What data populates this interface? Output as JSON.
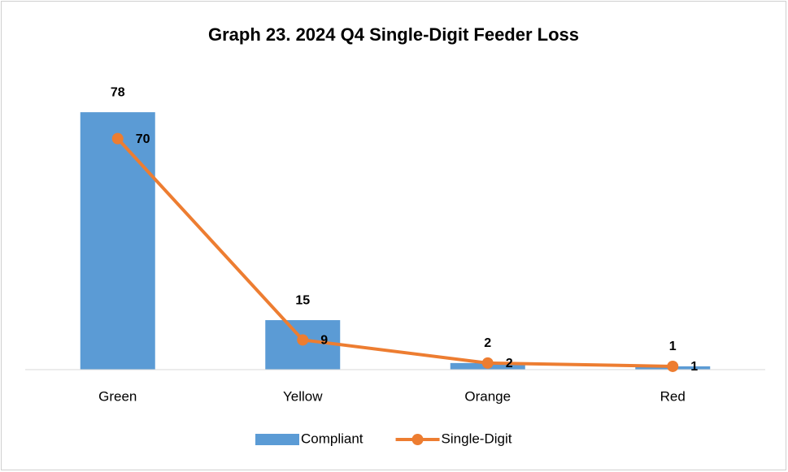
{
  "chart_data": {
    "type": "bar-line",
    "title": "Graph 23. 2024 Q4 Single-Digit Feeder Loss",
    "categories": [
      "Green",
      "Yellow",
      "Orange",
      "Red"
    ],
    "series": [
      {
        "name": "Compliant",
        "type": "bar",
        "color": "#5b9bd5",
        "values": [
          78,
          15,
          2,
          1
        ]
      },
      {
        "name": "Single-Digit",
        "type": "line",
        "color": "#ed7d31",
        "values": [
          70,
          9,
          2,
          1
        ]
      }
    ],
    "ylim": [
      0,
      80
    ],
    "legend": "bottom"
  }
}
